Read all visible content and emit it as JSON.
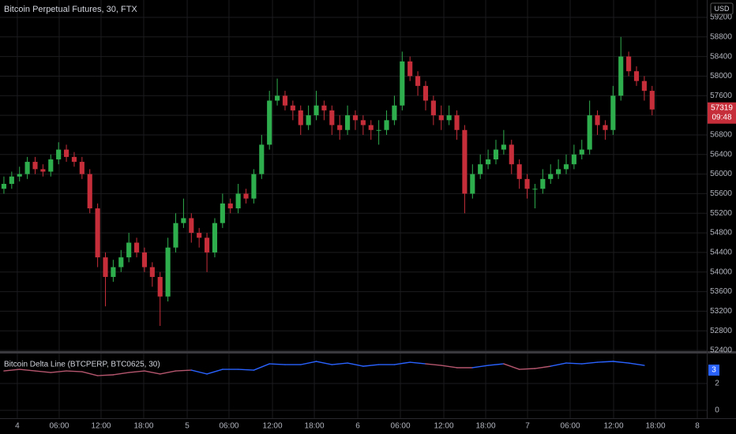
{
  "chart_data": {
    "type": "candlestick",
    "title": "Bitcoin Perpetual Futures, 30, FTX",
    "currency": "USD",
    "up_color": "#2fae4e",
    "down_color": "#c62e3a",
    "ohlc": [
      [
        55700,
        55950,
        55600,
        55800
      ],
      [
        55800,
        56050,
        55700,
        55950
      ],
      [
        55950,
        56150,
        55850,
        56000
      ],
      [
        56000,
        56350,
        55900,
        56250
      ],
      [
        56250,
        56350,
        56000,
        56100
      ],
      [
        56100,
        56200,
        55950,
        56050
      ],
      [
        56050,
        56400,
        55950,
        56300
      ],
      [
        56300,
        56650,
        56200,
        56500
      ],
      [
        56500,
        56600,
        56250,
        56350
      ],
      [
        56350,
        56450,
        56150,
        56250
      ],
      [
        56250,
        56350,
        55900,
        56000
      ],
      [
        56000,
        56100,
        55200,
        55300
      ],
      [
        55300,
        55400,
        54100,
        54300
      ],
      [
        54300,
        54400,
        53300,
        53900
      ],
      [
        53900,
        54250,
        53800,
        54100
      ],
      [
        54100,
        54450,
        54000,
        54300
      ],
      [
        54300,
        54800,
        54200,
        54600
      ],
      [
        54600,
        54700,
        54300,
        54400
      ],
      [
        54400,
        54500,
        54000,
        54100
      ],
      [
        54100,
        54200,
        53700,
        53900
      ],
      [
        53900,
        54000,
        52900,
        53500
      ],
      [
        53500,
        54700,
        53400,
        54500
      ],
      [
        54500,
        55200,
        54400,
        55000
      ],
      [
        55000,
        55500,
        54900,
        55100
      ],
      [
        55100,
        55200,
        54600,
        54800
      ],
      [
        54800,
        54900,
        54500,
        54700
      ],
      [
        54700,
        54800,
        54000,
        54400
      ],
      [
        54400,
        55100,
        54300,
        55000
      ],
      [
        55000,
        55600,
        54900,
        55400
      ],
      [
        55400,
        55500,
        55200,
        55300
      ],
      [
        55300,
        55800,
        55200,
        55600
      ],
      [
        55600,
        55700,
        55400,
        55500
      ],
      [
        55500,
        56100,
        55400,
        56000
      ],
      [
        56000,
        56800,
        55900,
        56600
      ],
      [
        56600,
        57700,
        56500,
        57500
      ],
      [
        57500,
        57950,
        57400,
        57600
      ],
      [
        57600,
        57700,
        57300,
        57400
      ],
      [
        57400,
        57500,
        57100,
        57300
      ],
      [
        57300,
        57400,
        56800,
        57000
      ],
      [
        57000,
        57400,
        56900,
        57200
      ],
      [
        57200,
        57700,
        57100,
        57400
      ],
      [
        57400,
        57500,
        57100,
        57300
      ],
      [
        57300,
        57400,
        56800,
        57000
      ],
      [
        57000,
        57200,
        56700,
        56900
      ],
      [
        56900,
        57400,
        56800,
        57200
      ],
      [
        57200,
        57300,
        56900,
        57100
      ],
      [
        57100,
        57200,
        56800,
        57000
      ],
      [
        57000,
        57100,
        56700,
        56900
      ],
      [
        56900,
        57100,
        56600,
        56900
      ],
      [
        56900,
        57300,
        56800,
        57100
      ],
      [
        57100,
        57600,
        57000,
        57400
      ],
      [
        57400,
        58500,
        57300,
        58300
      ],
      [
        58300,
        58400,
        57900,
        58000
      ],
      [
        58000,
        58100,
        57600,
        57800
      ],
      [
        57800,
        57900,
        57300,
        57500
      ],
      [
        57500,
        57600,
        57000,
        57200
      ],
      [
        57200,
        57400,
        56900,
        57100
      ],
      [
        57100,
        57400,
        57000,
        57200
      ],
      [
        57200,
        57300,
        56700,
        56900
      ],
      [
        56900,
        57000,
        55200,
        55600
      ],
      [
        55600,
        56200,
        55500,
        56000
      ],
      [
        56000,
        56400,
        55900,
        56200
      ],
      [
        56200,
        56500,
        56100,
        56300
      ],
      [
        56300,
        56700,
        56200,
        56500
      ],
      [
        56500,
        56900,
        56400,
        56600
      ],
      [
        56600,
        56700,
        56000,
        56200
      ],
      [
        56200,
        56300,
        55700,
        55900
      ],
      [
        55900,
        56000,
        55500,
        55700
      ],
      [
        55700,
        55800,
        55300,
        55700
      ],
      [
        55700,
        56100,
        55600,
        55900
      ],
      [
        55900,
        56200,
        55800,
        56000
      ],
      [
        56000,
        56300,
        55900,
        56100
      ],
      [
        56100,
        56400,
        56000,
        56200
      ],
      [
        56200,
        56600,
        56100,
        56400
      ],
      [
        56400,
        56700,
        56300,
        56500
      ],
      [
        56500,
        57500,
        56400,
        57200
      ],
      [
        57200,
        57300,
        56800,
        57000
      ],
      [
        57000,
        57100,
        56700,
        56900
      ],
      [
        56900,
        57800,
        56800,
        57600
      ],
      [
        57600,
        58800,
        57500,
        58400
      ],
      [
        58400,
        58500,
        58000,
        58100
      ],
      [
        58100,
        58200,
        57800,
        57900
      ],
      [
        57900,
        58000,
        57500,
        57700
      ],
      [
        57700,
        57800,
        57200,
        57319
      ]
    ],
    "xlim": [
      -0.5,
      90
    ],
    "xticks": [
      {
        "value": 1.72,
        "label": "4"
      },
      {
        "value": 7.08,
        "label": "06:00"
      },
      {
        "value": 12.44,
        "label": "12:00"
      },
      {
        "value": 17.9,
        "label": "18:00"
      },
      {
        "value": 23.47,
        "label": "5"
      },
      {
        "value": 28.82,
        "label": "06:00"
      },
      {
        "value": 34.39,
        "label": "12:00"
      },
      {
        "value": 39.75,
        "label": "18:00"
      },
      {
        "value": 45.31,
        "label": "6"
      },
      {
        "value": 50.77,
        "label": "06:00"
      },
      {
        "value": 56.33,
        "label": "12:00"
      },
      {
        "value": 61.69,
        "label": "18:00"
      },
      {
        "value": 67.05,
        "label": "7"
      },
      {
        "value": 72.51,
        "label": "06:00"
      },
      {
        "value": 78.07,
        "label": "12:00"
      },
      {
        "value": 83.43,
        "label": "18:00"
      },
      {
        "value": 88.79,
        "label": "8"
      }
    ],
    "ylim": [
      52385,
      59554
    ],
    "yticks": [
      52400,
      52800,
      53200,
      53600,
      54000,
      54400,
      54800,
      55200,
      55600,
      56000,
      56400,
      56800,
      57200,
      57600,
      58000,
      58400,
      58800,
      59200
    ],
    "grid": true,
    "last_price": 57319,
    "countdown": "09:48",
    "indicator": {
      "type": "line",
      "name": "Bitcoin Delta Line (BTCPERP, BTC0625, 30)",
      "x": [
        0,
        2,
        4,
        6,
        8,
        10,
        12,
        14,
        16,
        18,
        20,
        22,
        24,
        26,
        28,
        30,
        32,
        34,
        36,
        38,
        40,
        42,
        44,
        46,
        48,
        50,
        52,
        54,
        56,
        58,
        60,
        62,
        64,
        66,
        68,
        70,
        72,
        74,
        76,
        78,
        80,
        82
      ],
      "values": [
        2.94,
        3.06,
        2.94,
        2.82,
        2.94,
        2.88,
        2.59,
        2.65,
        2.82,
        2.94,
        2.71,
        2.94,
        3.0,
        2.71,
        3.06,
        3.06,
        3.0,
        3.47,
        3.41,
        3.41,
        3.65,
        3.41,
        3.53,
        3.29,
        3.41,
        3.41,
        3.59,
        3.47,
        3.35,
        3.18,
        3.18,
        3.35,
        3.47,
        3.06,
        3.12,
        3.29,
        3.53,
        3.47,
        3.59,
        3.65,
        3.53,
        3.35
      ],
      "colors": [
        "#b5566e",
        "#b5566e",
        "#b5566e",
        "#b5566e",
        "#b5566e",
        "#b5566e",
        "#b5566e",
        "#b5566e",
        "#b5566e",
        "#b5566e",
        "#b5566e",
        "#b5566e",
        "#b5566e",
        "#2962ff",
        "#2962ff",
        "#2962ff",
        "#2962ff",
        "#2962ff",
        "#2962ff",
        "#2962ff",
        "#2962ff",
        "#2962ff",
        "#2962ff",
        "#2962ff",
        "#2962ff",
        "#2962ff",
        "#2962ff",
        "#2962ff",
        "#b5566e",
        "#b5566e",
        "#b5566e",
        "#2962ff",
        "#2962ff",
        "#b5566e",
        "#b5566e",
        "#b5566e",
        "#2962ff",
        "#2962ff",
        "#2962ff",
        "#2962ff",
        "#2962ff",
        "#2962ff"
      ],
      "ylim": [
        -0.47,
        4.18
      ],
      "yticks": [
        0,
        2
      ],
      "last_value": 3
    }
  }
}
